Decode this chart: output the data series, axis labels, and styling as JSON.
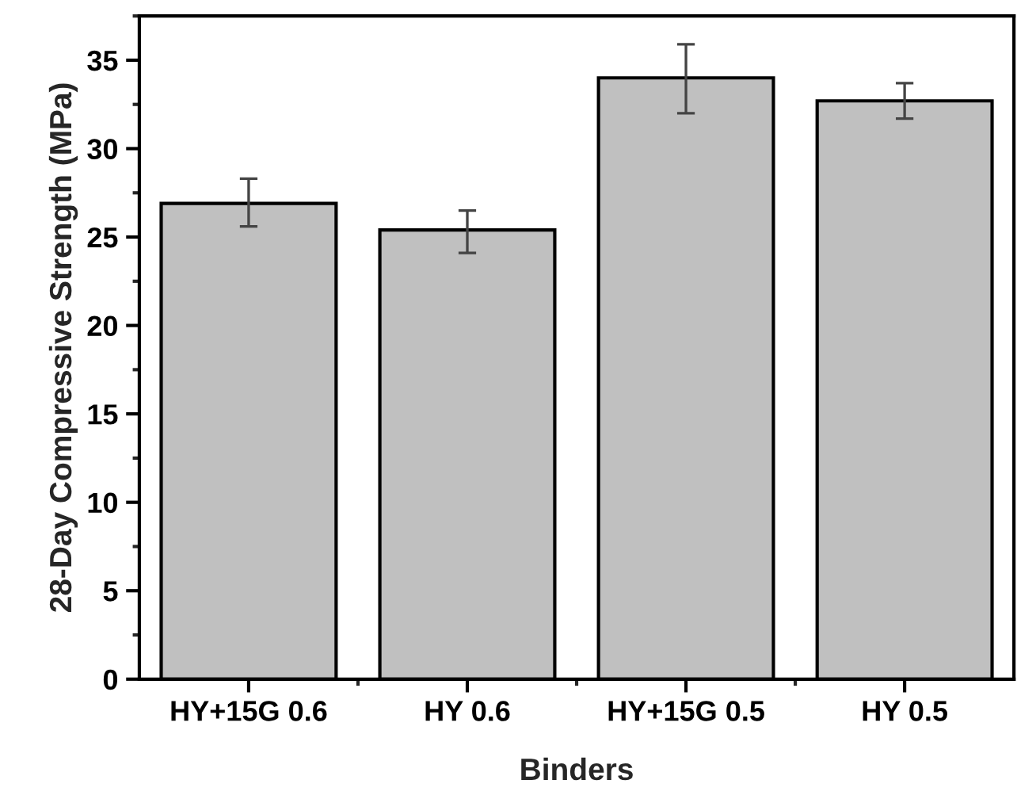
{
  "chart_data": {
    "type": "bar",
    "xlabel": "Binders",
    "ylabel": "28-Day Compressive Strength (MPa)",
    "categories": [
      "HY+15G 0.6",
      "HY 0.6",
      "HY+15G 0.5",
      "HY 0.5"
    ],
    "values": [
      26.9,
      25.4,
      34.0,
      32.7
    ],
    "errors": [
      [
        25.6,
        28.3
      ],
      [
        24.1,
        26.5
      ],
      [
        32.0,
        35.9
      ],
      [
        31.7,
        33.7
      ]
    ],
    "color": "#c0c0c0",
    "ylim": [
      0,
      37.5
    ],
    "yticks": [
      0,
      5,
      10,
      15,
      20,
      25,
      30,
      35
    ],
    "grid": false,
    "legend": false
  }
}
